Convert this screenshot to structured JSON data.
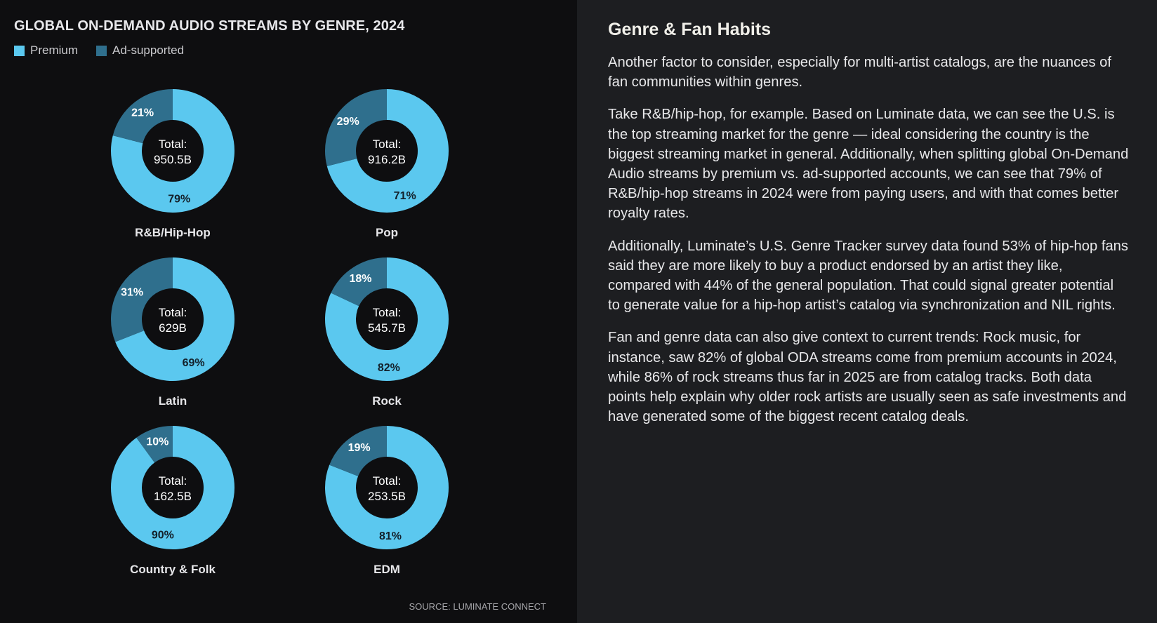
{
  "chart_panel": {
    "title": "GLOBAL ON-DEMAND AUDIO STREAMS BY GENRE, 2024",
    "legend": [
      {
        "label": "Premium",
        "color": "#5bc8ef"
      },
      {
        "label": "Ad-supported",
        "color": "#2f6f8d"
      }
    ],
    "source": "SOURCE: LUMINATE CONNECT"
  },
  "chart_data": {
    "type": "pie",
    "variant": "donut",
    "series": [
      "Premium",
      "Ad-supported"
    ],
    "genres": [
      {
        "name": "R&B/Hip-Hop",
        "premium": 79,
        "ad_supported": 21,
        "total_label": "Total:",
        "total_value": "950.5B",
        "premium_label": "79%",
        "ad_label": "21%"
      },
      {
        "name": "Pop",
        "premium": 71,
        "ad_supported": 29,
        "total_label": "Total:",
        "total_value": "916.2B",
        "premium_label": "71%",
        "ad_label": "29%"
      },
      {
        "name": "Latin",
        "premium": 69,
        "ad_supported": 31,
        "total_label": "Total:",
        "total_value": "629B",
        "premium_label": "69%",
        "ad_label": "31%"
      },
      {
        "name": "Rock",
        "premium": 82,
        "ad_supported": 18,
        "total_label": "Total:",
        "total_value": "545.7B",
        "premium_label": "82%",
        "ad_label": "18%"
      },
      {
        "name": "Country & Folk",
        "premium": 90,
        "ad_supported": 10,
        "total_label": "Total:",
        "total_value": "162.5B",
        "premium_label": "90%",
        "ad_label": "10%"
      },
      {
        "name": "EDM",
        "premium": 81,
        "ad_supported": 19,
        "total_label": "Total:",
        "total_value": "253.5B",
        "premium_label": "81%",
        "ad_label": "19%"
      }
    ],
    "title": "GLOBAL ON-DEMAND AUDIO STREAMS BY GENRE, 2024",
    "unit": "percent of streams"
  },
  "text_panel": {
    "heading": "Genre & Fan Habits",
    "paragraphs": [
      "Another factor to consider, especially for multi-artist catalogs, are the nuances of fan communities within genres.",
      "Take R&B/hip-hop, for example. Based on Luminate data, we can see the U.S. is the top streaming market for the genre — ideal considering the country is the biggest streaming market in general. Additionally, when splitting global On-Demand Audio streams by premium vs. ad-supported accounts, we can see that 79% of R&B/hip-hop streams in 2024 were from paying users, and with that comes better royalty rates.",
      "Additionally, Luminate’s U.S. Genre Tracker survey data found 53% of hip-hop fans said they are more likely to buy a product endorsed by an artist they like, compared with 44% of the general population. That could signal greater potential to generate value for a hip-hop artist’s catalog via synchronization and NIL rights.",
      "Fan and genre data can also give context to current trends: Rock music, for instance, saw 82% of global ODA streams come from premium accounts in 2024, while 86% of rock streams thus far in 2025 are from catalog tracks. Both data points help explain why older rock artists are usually seen as safe investments and have generated some of the biggest recent catalog deals."
    ]
  }
}
